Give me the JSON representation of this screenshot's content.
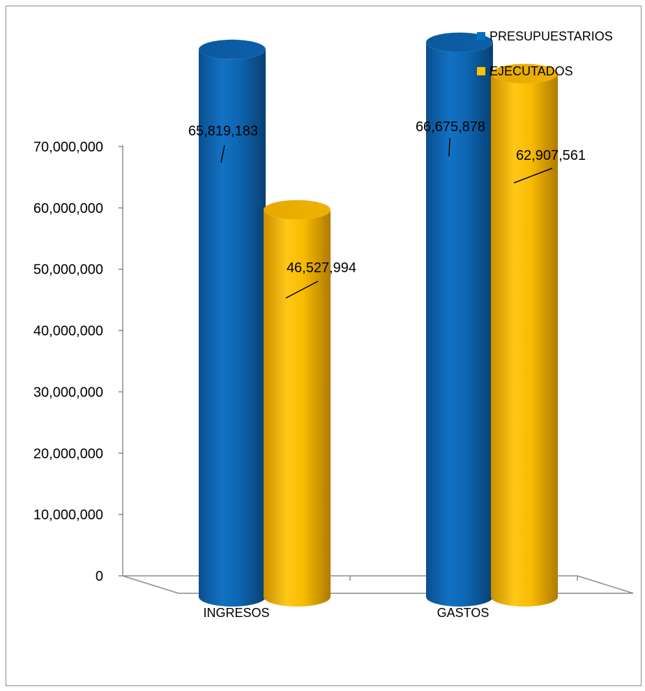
{
  "chart_data": {
    "type": "bar",
    "style": "3d-cylinder",
    "title": "",
    "xlabel": "",
    "ylabel": "",
    "categories": [
      "INGRESOS",
      "GASTOS"
    ],
    "series": [
      {
        "name": "PRESUPUESTARIOS",
        "color": "#0070c0",
        "values": [
          65819183,
          66675878
        ]
      },
      {
        "name": "EJECUTADOS",
        "color": "#ffc000",
        "values": [
          46527994,
          62907561
        ]
      }
    ],
    "data_labels": [
      [
        "65,819,183",
        "66,675,878"
      ],
      [
        "46,527,994",
        "62,907,561"
      ]
    ],
    "ylim": [
      0,
      70000000
    ],
    "yticks": [
      0,
      10000000,
      20000000,
      30000000,
      40000000,
      50000000,
      60000000,
      70000000
    ],
    "ytick_labels": [
      "0",
      "10,000,000",
      "20,000,000",
      "30,000,000",
      "40,000,000",
      "50,000,000",
      "60,000,000",
      "70,000,000"
    ],
    "grid": false,
    "legend_position": "top-right"
  }
}
